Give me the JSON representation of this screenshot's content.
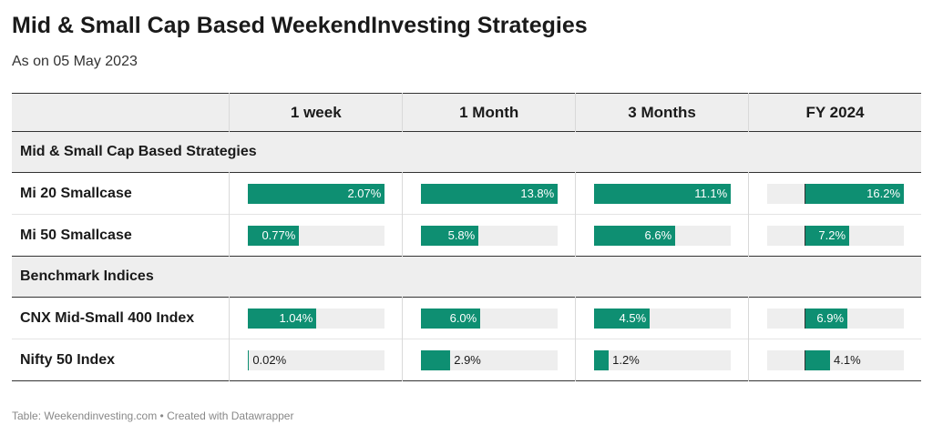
{
  "header": {
    "title": "Mid & Small Cap Based WeekendInvesting Strategies",
    "subtitle": "As on 05 May 2023"
  },
  "footer": {
    "text": "Table: Weekendinvesting.com • Created with Datawrapper"
  },
  "colors": {
    "bar": "#0e8f72",
    "track": "#eeeeee",
    "group_bg": "#eeeeee"
  },
  "chart_data": {
    "type": "table",
    "columns": [
      "",
      "1 week",
      "1 Month",
      "3 Months",
      "FY 2024"
    ],
    "column_scales": [
      {
        "min": 0,
        "max": 2.07
      },
      {
        "min": 0,
        "max": 13.8
      },
      {
        "min": 0,
        "max": 11.1
      },
      {
        "min": -6,
        "max": 16.2
      }
    ],
    "groups": [
      {
        "label": "Mid & Small Cap Based Strategies",
        "rows": [
          {
            "name": "Mi 20 Smallcase",
            "values": [
              2.07,
              13.8,
              11.1,
              16.2
            ],
            "labels": [
              "2.07%",
              "13.8%",
              "11.1%",
              "16.2%"
            ]
          },
          {
            "name": "Mi 50 Smallcase",
            "values": [
              0.77,
              5.8,
              6.6,
              7.2
            ],
            "labels": [
              "0.77%",
              "5.8%",
              "6.6%",
              "7.2%"
            ]
          }
        ]
      },
      {
        "label": "Benchmark Indices",
        "rows": [
          {
            "name": "CNX Mid-Small 400 Index",
            "values": [
              1.04,
              6.0,
              4.5,
              6.9
            ],
            "labels": [
              "1.04%",
              "6.0%",
              "4.5%",
              "6.9%"
            ]
          },
          {
            "name": "Nifty 50 Index",
            "values": [
              0.02,
              2.9,
              1.2,
              4.1
            ],
            "labels": [
              "0.02%",
              "2.9%",
              "1.2%",
              "4.1%"
            ]
          }
        ]
      }
    ]
  }
}
